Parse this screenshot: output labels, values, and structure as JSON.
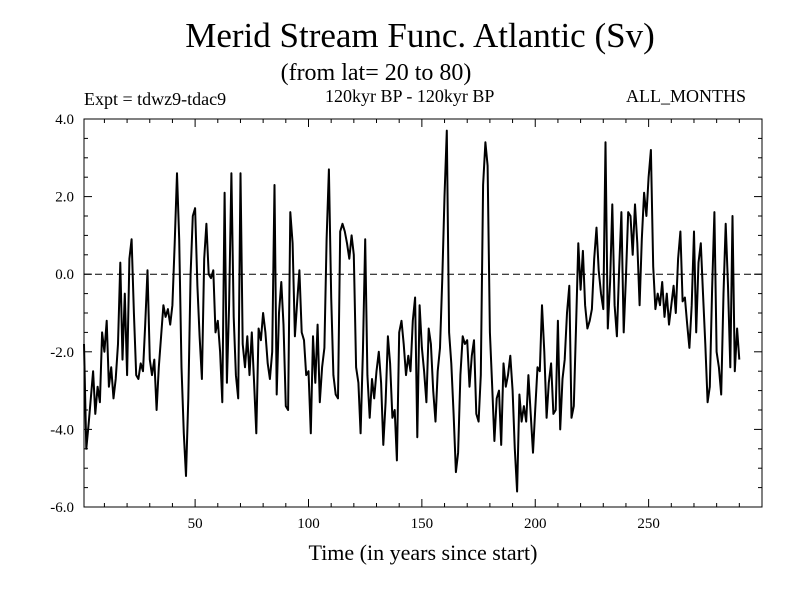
{
  "header": {
    "title": "Merid Stream Func. Atlantic (Sv)",
    "subtitle": "(from lat= 20 to 80)",
    "expt": "Expt = tdwz9-tdac9",
    "period": "120kyr BP - 120kyr BP",
    "months": "ALL_MONTHS"
  },
  "chart_data": {
    "type": "line",
    "title": "Merid Stream Func. Atlantic (Sv)",
    "subtitle": "(from lat= 20 to 80)",
    "xlabel": "Time (in years since start)",
    "ylabel": "",
    "xlim": [
      1,
      300
    ],
    "ylim": [
      -6.0,
      4.0
    ],
    "xticks": [
      50,
      100,
      150,
      200,
      250
    ],
    "xtick_labels": [
      "50",
      "100",
      "150",
      "200",
      "250"
    ],
    "yticks": [
      -6,
      -4,
      -2,
      0,
      2,
      4
    ],
    "ytick_labels": [
      "-6.0",
      "-4.0",
      "-2.0",
      "0.0",
      "2.0",
      "4.0"
    ],
    "reference_line": {
      "y": 0.0,
      "style": "dashed"
    },
    "grid": false,
    "series": [
      {
        "x_start": 1,
        "x_step": 1,
        "values": [
          -1.8,
          -4.5,
          -3.9,
          -3.2,
          -2.5,
          -3.6,
          -2.9,
          -3.3,
          -1.5,
          -2.0,
          -1.2,
          -2.9,
          -2.4,
          -3.2,
          -2.7,
          -1.8,
          0.3,
          -2.2,
          -0.5,
          -2.6,
          0.4,
          0.9,
          -1.0,
          -2.6,
          -2.7,
          -2.3,
          -2.5,
          -1.3,
          0.1,
          -2.2,
          -2.6,
          -2.2,
          -3.5,
          -2.4,
          -1.6,
          -0.8,
          -1.1,
          -0.9,
          -1.3,
          -0.8,
          0.8,
          2.6,
          0.9,
          -2.4,
          -4.1,
          -5.2,
          -3.2,
          0.0,
          1.5,
          1.7,
          -0.3,
          -1.6,
          -2.7,
          0.4,
          1.3,
          0.0,
          -0.1,
          0.1,
          -1.5,
          -1.2,
          -2.0,
          -3.3,
          2.1,
          -2.8,
          -0.8,
          2.6,
          -1.1,
          -2.6,
          -3.2,
          2.6,
          -1.8,
          -2.4,
          -1.6,
          -2.6,
          -1.5,
          -2.8,
          -4.1,
          -1.4,
          -1.7,
          -1.0,
          -1.5,
          -2.3,
          -2.7,
          -2.0,
          2.3,
          -3.1,
          -1.0,
          -0.2,
          -1.3,
          -3.4,
          -3.5,
          1.6,
          0.8,
          -1.6,
          -0.7,
          0.1,
          -1.5,
          -1.7,
          -2.6,
          -2.5,
          -4.1,
          -1.6,
          -2.8,
          -1.3,
          -3.3,
          -2.4,
          -1.9,
          0.9,
          2.7,
          -0.6,
          -2.6,
          -3.1,
          -3.2,
          1.1,
          1.3,
          1.1,
          0.8,
          0.4,
          1.0,
          0.5,
          -2.4,
          -2.8,
          -4.1,
          -2.0,
          0.9,
          -2.6,
          -3.7,
          -2.7,
          -3.2,
          -2.5,
          -2.0,
          -2.8,
          -4.4,
          -3.3,
          -1.6,
          -2.3,
          -3.7,
          -3.5,
          -4.8,
          -1.5,
          -1.2,
          -1.8,
          -2.6,
          -2.1,
          -2.5,
          -1.2,
          -0.6,
          -4.2,
          -0.8,
          -1.9,
          -2.5,
          -3.3,
          -1.4,
          -1.8,
          -3.0,
          -3.8,
          -2.5,
          -1.9,
          -0.1,
          2.0,
          3.7,
          -1.5,
          -2.3,
          -3.6,
          -5.1,
          -4.6,
          -2.6,
          -1.6,
          -1.8,
          -1.7,
          -2.9,
          -2.1,
          -1.7,
          -3.6,
          -3.8,
          -2.6,
          2.3,
          3.4,
          2.8,
          -1.5,
          -2.9,
          -4.3,
          -3.2,
          -3.0,
          -4.4,
          -2.3,
          -2.9,
          -2.6,
          -2.1,
          -3.0,
          -4.5,
          -5.6,
          -3.1,
          -3.8,
          -3.4,
          -3.8,
          -2.6,
          -3.6,
          -4.6,
          -3.5,
          -2.4,
          -2.5,
          -0.8,
          -2.0,
          -3.7,
          -2.8,
          -2.3,
          -3.6,
          -3.5,
          -1.2,
          -4.0,
          -2.7,
          -2.2,
          -1.0,
          -0.3,
          -3.7,
          -3.4,
          -1.3,
          0.8,
          -0.4,
          0.6,
          -0.8,
          -1.4,
          -1.2,
          -0.9,
          0.4,
          1.2,
          0.1,
          -0.5,
          -0.9,
          3.4,
          -1.4,
          -0.2,
          1.8,
          -0.8,
          -1.6,
          0.1,
          1.6,
          -1.5,
          -0.1,
          1.6,
          1.5,
          0.5,
          1.8,
          0.8,
          -0.8,
          0.9,
          2.1,
          1.5,
          2.5,
          3.2,
          0.2,
          -0.9,
          -0.5,
          -0.8,
          -0.2,
          -1.1,
          -0.5,
          -1.3,
          -0.8,
          -0.3,
          -1.0,
          0.4,
          1.1,
          -0.7,
          -0.6,
          -1.3,
          -1.9,
          -0.8,
          1.1,
          -1.5,
          0.3,
          0.8,
          -0.5,
          -1.8,
          -3.3,
          -2.9,
          -0.4,
          1.6,
          -2.0,
          -2.4,
          -3.1,
          -0.5,
          1.3,
          -0.3,
          -2.4,
          1.5,
          -2.5,
          -1.4,
          -2.2
        ]
      }
    ]
  }
}
